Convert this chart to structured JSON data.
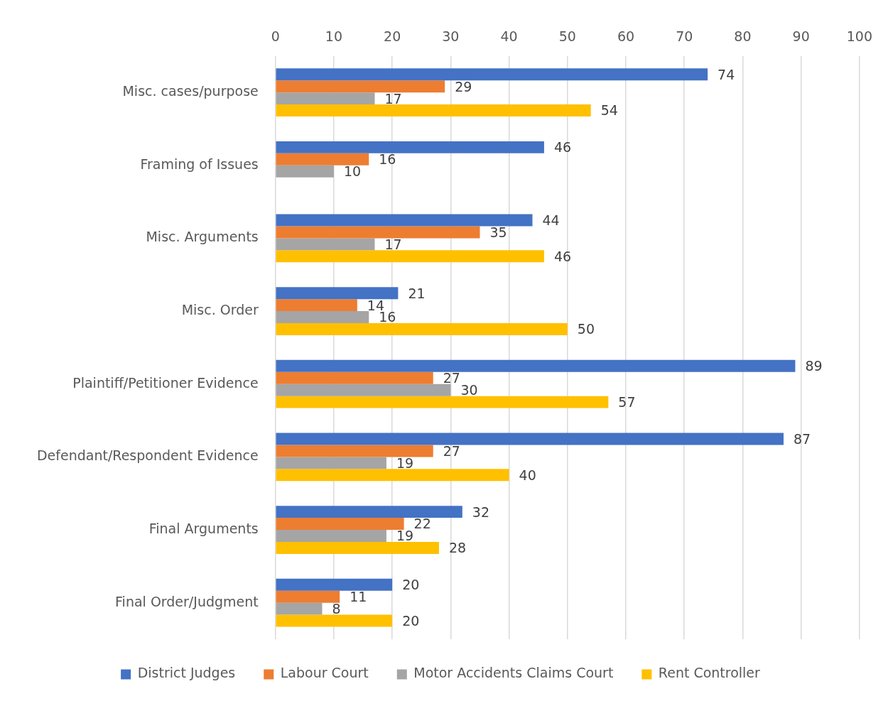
{
  "chart_data": {
    "type": "bar",
    "orientation": "horizontal",
    "categories": [
      "Misc. cases/purpose",
      "Framing of Issues",
      "Misc. Arguments",
      "Misc. Order",
      "Plaintiff/Petitioner Evidence",
      "Defendant/Respondent Evidence",
      "Final Arguments",
      "Final Order/Judgment"
    ],
    "series": [
      {
        "name": "District Judges",
        "color": "#4472c4",
        "values": [
          74,
          46,
          44,
          21,
          89,
          87,
          32,
          20
        ]
      },
      {
        "name": "Labour Court",
        "color": "#ed7d31",
        "values": [
          29,
          16,
          35,
          14,
          27,
          27,
          22,
          11
        ]
      },
      {
        "name": "Motor Accidents Claims Court",
        "color": "#a5a5a5",
        "values": [
          17,
          10,
          17,
          16,
          30,
          19,
          19,
          8
        ]
      },
      {
        "name": "Rent Controller",
        "color": "#ffc000",
        "values": [
          54,
          null,
          46,
          50,
          57,
          40,
          28,
          20
        ]
      }
    ],
    "xlim": [
      0,
      100
    ],
    "xticks": [
      0,
      10,
      20,
      30,
      40,
      50,
      60,
      70,
      80,
      90,
      100
    ],
    "grid": "x",
    "legend": "bottom",
    "data_labels": true
  }
}
